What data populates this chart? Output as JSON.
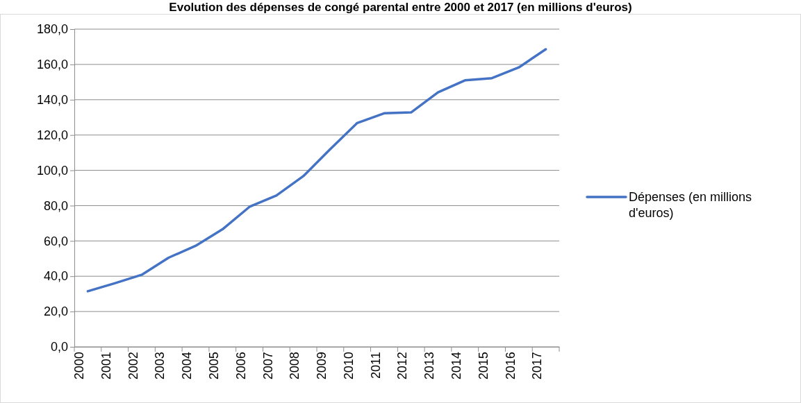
{
  "chart_data": {
    "type": "line",
    "title": "Evolution des dépenses de congé parental entre 2000 et 2017 (en millions d'euros)",
    "categories": [
      "2000",
      "2001",
      "2002",
      "2003",
      "2004",
      "2005",
      "2006",
      "2007",
      "2008",
      "2009",
      "2010",
      "2011",
      "2012",
      "2013",
      "2014",
      "2015",
      "2016",
      "2017"
    ],
    "series": [
      {
        "name": "Dépenses (en millions d'euros)",
        "color": "#4472c4",
        "values": [
          31.5,
          36,
          40.8,
          50.5,
          57.2,
          66.6,
          79.3,
          85.7,
          96.7,
          112,
          126.8,
          132.3,
          132.8,
          144.2,
          151,
          152.2,
          158.3,
          168.6
        ]
      }
    ],
    "ylim": [
      0,
      180
    ],
    "yticks": [
      {
        "value": 0,
        "label": "0,0"
      },
      {
        "value": 20,
        "label": "20,0"
      },
      {
        "value": 40,
        "label": "40,0"
      },
      {
        "value": 60,
        "label": "60,0"
      },
      {
        "value": 80,
        "label": "80,0"
      },
      {
        "value": 100,
        "label": "100,0"
      },
      {
        "value": 120,
        "label": "120,0"
      },
      {
        "value": 140,
        "label": "140,0"
      },
      {
        "value": 160,
        "label": "160,0"
      },
      {
        "value": 180,
        "label": "180,0"
      }
    ],
    "grid": "y",
    "legend": "right",
    "marker": "none",
    "line_style": "solid"
  }
}
